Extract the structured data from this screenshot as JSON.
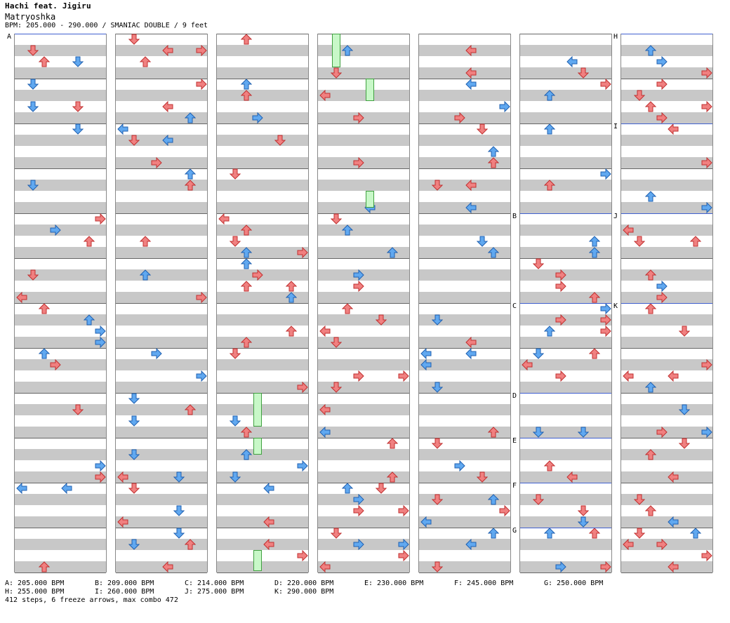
{
  "header": {
    "artist": "Hachi feat. Jigiru",
    "title": "Matryoshka",
    "info": "BPM: 205.000 - 290.000 / SMANIAC DOUBLE / 9 feet"
  },
  "colors": {
    "left_side": "#f08080",
    "right_side": "#60a8f0",
    "freeze": "#c8f8c8",
    "bpm_line": "#4060d0"
  },
  "icons": {
    "arrow": "arrow-icon",
    "freeze": "freeze-arrow-icon"
  },
  "sections": {
    "A": "A",
    "B": "B",
    "C": "C",
    "D": "D",
    "E": "E",
    "F": "F",
    "G": "G",
    "H": "H",
    "I": "I",
    "J": "J",
    "K": "K"
  },
  "footer": {
    "legend": [
      "A: 205.000 BPM",
      "B: 209.000 BPM",
      "C: 214.000 BPM",
      "D: 220.000 BPM",
      "E: 230.000 BPM",
      "F: 245.000 BPM",
      "G: 250.000 BPM",
      "H: 255.000 BPM",
      "I: 260.000 BPM",
      "J: 275.000 BPM",
      "K: 290.000 BPM"
    ],
    "summary": "412 steps, 6 freeze arrows, max combo 472"
  }
}
